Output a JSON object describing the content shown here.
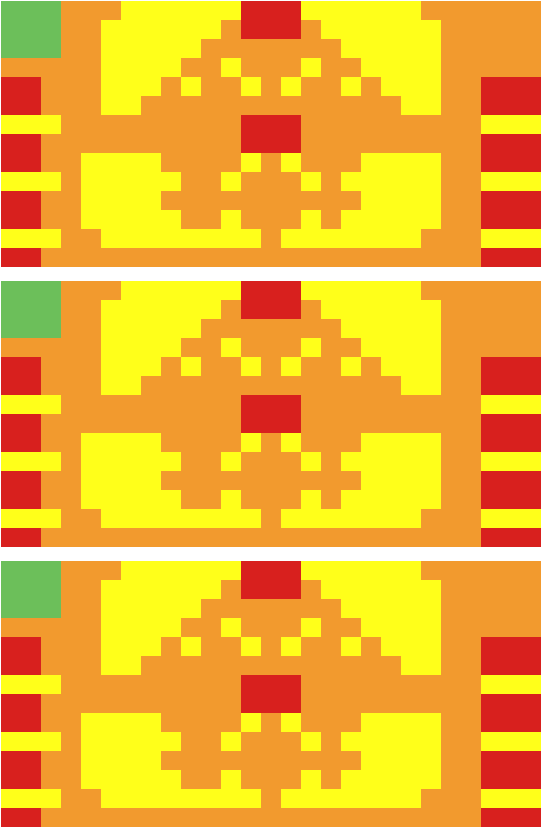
{
  "chart_data": [
    {
      "type": "heatmap",
      "tick_labels": false,
      "cells": [
        [
          1,
          1,
          1,
          3,
          3,
          3,
          2,
          2,
          2,
          2,
          2,
          2,
          4,
          4,
          4,
          2,
          2,
          2,
          2,
          2,
          2,
          3,
          3,
          3,
          3,
          3,
          3
        ],
        [
          1,
          1,
          1,
          3,
          3,
          2,
          2,
          2,
          2,
          2,
          2,
          3,
          4,
          4,
          4,
          3,
          2,
          2,
          2,
          2,
          2,
          2,
          3,
          3,
          3,
          3,
          3
        ],
        [
          1,
          1,
          1,
          3,
          3,
          2,
          2,
          2,
          2,
          2,
          3,
          3,
          3,
          3,
          3,
          3,
          3,
          2,
          2,
          2,
          2,
          2,
          3,
          3,
          3,
          3,
          3
        ],
        [
          3,
          3,
          3,
          3,
          3,
          2,
          2,
          2,
          2,
          3,
          3,
          2,
          3,
          3,
          3,
          2,
          3,
          3,
          2,
          2,
          2,
          2,
          3,
          3,
          3,
          3,
          3
        ],
        [
          4,
          4,
          3,
          3,
          3,
          2,
          2,
          2,
          3,
          2,
          3,
          3,
          2,
          3,
          2,
          3,
          3,
          2,
          3,
          2,
          2,
          2,
          3,
          3,
          4,
          4,
          4
        ],
        [
          4,
          4,
          3,
          3,
          3,
          2,
          2,
          3,
          3,
          3,
          3,
          3,
          3,
          3,
          3,
          3,
          3,
          3,
          3,
          3,
          2,
          2,
          3,
          3,
          4,
          4,
          4
        ],
        [
          2,
          2,
          2,
          3,
          3,
          3,
          3,
          3,
          3,
          3,
          3,
          3,
          4,
          4,
          4,
          3,
          3,
          3,
          3,
          3,
          3,
          3,
          3,
          3,
          2,
          2,
          2
        ],
        [
          4,
          4,
          3,
          3,
          3,
          3,
          3,
          3,
          3,
          3,
          3,
          3,
          4,
          4,
          4,
          3,
          3,
          3,
          3,
          3,
          3,
          3,
          3,
          3,
          4,
          4,
          4
        ],
        [
          4,
          4,
          3,
          3,
          2,
          2,
          2,
          2,
          3,
          3,
          3,
          3,
          2,
          3,
          2,
          3,
          3,
          3,
          2,
          2,
          2,
          2,
          3,
          3,
          4,
          4,
          4
        ],
        [
          2,
          2,
          2,
          3,
          2,
          2,
          2,
          2,
          2,
          3,
          3,
          2,
          3,
          3,
          3,
          2,
          3,
          2,
          2,
          2,
          2,
          2,
          3,
          3,
          2,
          2,
          2
        ],
        [
          4,
          4,
          3,
          3,
          2,
          2,
          2,
          2,
          3,
          3,
          3,
          3,
          3,
          3,
          3,
          3,
          3,
          3,
          2,
          2,
          2,
          2,
          3,
          3,
          4,
          4,
          4
        ],
        [
          4,
          4,
          3,
          3,
          2,
          2,
          2,
          2,
          2,
          3,
          3,
          2,
          3,
          3,
          3,
          2,
          3,
          2,
          2,
          2,
          2,
          2,
          3,
          3,
          4,
          4,
          4
        ],
        [
          2,
          2,
          2,
          3,
          3,
          2,
          2,
          2,
          2,
          2,
          2,
          2,
          2,
          3,
          2,
          2,
          2,
          2,
          2,
          2,
          2,
          3,
          3,
          3,
          2,
          2,
          2
        ],
        [
          4,
          4,
          3,
          3,
          3,
          3,
          3,
          3,
          3,
          3,
          3,
          3,
          3,
          3,
          3,
          3,
          3,
          3,
          3,
          3,
          3,
          3,
          3,
          3,
          4,
          4,
          4
        ]
      ]
    },
    {
      "type": "heatmap",
      "tick_labels": false,
      "cells": [
        [
          1,
          1,
          1,
          3,
          3,
          3,
          2,
          2,
          2,
          2,
          2,
          2,
          4,
          4,
          4,
          2,
          2,
          2,
          2,
          2,
          2,
          3,
          3,
          3,
          3,
          3,
          3
        ],
        [
          1,
          1,
          1,
          3,
          3,
          2,
          2,
          2,
          2,
          2,
          2,
          3,
          4,
          4,
          4,
          3,
          2,
          2,
          2,
          2,
          2,
          2,
          3,
          3,
          3,
          3,
          3
        ],
        [
          1,
          1,
          1,
          3,
          3,
          2,
          2,
          2,
          2,
          2,
          3,
          3,
          3,
          3,
          3,
          3,
          3,
          2,
          2,
          2,
          2,
          2,
          3,
          3,
          3,
          3,
          3
        ],
        [
          3,
          3,
          3,
          3,
          3,
          2,
          2,
          2,
          2,
          3,
          3,
          2,
          3,
          3,
          3,
          2,
          3,
          3,
          2,
          2,
          2,
          2,
          3,
          3,
          3,
          3,
          3
        ],
        [
          4,
          4,
          3,
          3,
          3,
          2,
          2,
          2,
          3,
          2,
          3,
          3,
          2,
          3,
          2,
          3,
          3,
          2,
          3,
          2,
          2,
          2,
          3,
          3,
          4,
          4,
          4
        ],
        [
          4,
          4,
          3,
          3,
          3,
          2,
          2,
          3,
          3,
          3,
          3,
          3,
          3,
          3,
          3,
          3,
          3,
          3,
          3,
          3,
          2,
          2,
          3,
          3,
          4,
          4,
          4
        ],
        [
          2,
          2,
          2,
          3,
          3,
          3,
          3,
          3,
          3,
          3,
          3,
          3,
          4,
          4,
          4,
          3,
          3,
          3,
          3,
          3,
          3,
          3,
          3,
          3,
          2,
          2,
          2
        ],
        [
          4,
          4,
          3,
          3,
          3,
          3,
          3,
          3,
          3,
          3,
          3,
          3,
          4,
          4,
          4,
          3,
          3,
          3,
          3,
          3,
          3,
          3,
          3,
          3,
          4,
          4,
          4
        ],
        [
          4,
          4,
          3,
          3,
          2,
          2,
          2,
          2,
          3,
          3,
          3,
          3,
          2,
          3,
          2,
          3,
          3,
          3,
          2,
          2,
          2,
          2,
          3,
          3,
          4,
          4,
          4
        ],
        [
          2,
          2,
          2,
          3,
          2,
          2,
          2,
          2,
          2,
          3,
          3,
          2,
          3,
          3,
          3,
          2,
          3,
          2,
          2,
          2,
          2,
          2,
          3,
          3,
          2,
          2,
          2
        ],
        [
          4,
          4,
          3,
          3,
          2,
          2,
          2,
          2,
          3,
          3,
          3,
          3,
          3,
          3,
          3,
          3,
          3,
          3,
          2,
          2,
          2,
          2,
          3,
          3,
          4,
          4,
          4
        ],
        [
          4,
          4,
          3,
          3,
          2,
          2,
          2,
          2,
          2,
          3,
          3,
          2,
          3,
          3,
          3,
          2,
          3,
          2,
          2,
          2,
          2,
          2,
          3,
          3,
          4,
          4,
          4
        ],
        [
          2,
          2,
          2,
          3,
          3,
          2,
          2,
          2,
          2,
          2,
          2,
          2,
          2,
          3,
          2,
          2,
          2,
          2,
          2,
          2,
          2,
          3,
          3,
          3,
          2,
          2,
          2
        ],
        [
          4,
          4,
          3,
          3,
          3,
          3,
          3,
          3,
          3,
          3,
          3,
          3,
          3,
          3,
          3,
          3,
          3,
          3,
          3,
          3,
          3,
          3,
          3,
          3,
          4,
          4,
          4
        ]
      ]
    },
    {
      "type": "heatmap",
      "tick_labels": false,
      "cells": [
        [
          1,
          1,
          1,
          3,
          3,
          3,
          2,
          2,
          2,
          2,
          2,
          2,
          4,
          4,
          4,
          2,
          2,
          2,
          2,
          2,
          2,
          3,
          3,
          3,
          3,
          3,
          3
        ],
        [
          1,
          1,
          1,
          3,
          3,
          2,
          2,
          2,
          2,
          2,
          2,
          3,
          4,
          4,
          4,
          3,
          2,
          2,
          2,
          2,
          2,
          2,
          3,
          3,
          3,
          3,
          3
        ],
        [
          1,
          1,
          1,
          3,
          3,
          2,
          2,
          2,
          2,
          2,
          3,
          3,
          3,
          3,
          3,
          3,
          3,
          2,
          2,
          2,
          2,
          2,
          3,
          3,
          3,
          3,
          3
        ],
        [
          3,
          3,
          3,
          3,
          3,
          2,
          2,
          2,
          2,
          3,
          3,
          2,
          3,
          3,
          3,
          2,
          3,
          3,
          2,
          2,
          2,
          2,
          3,
          3,
          3,
          3,
          3
        ],
        [
          4,
          4,
          3,
          3,
          3,
          2,
          2,
          2,
          3,
          2,
          3,
          3,
          2,
          3,
          2,
          3,
          3,
          2,
          3,
          2,
          2,
          2,
          3,
          3,
          4,
          4,
          4
        ],
        [
          4,
          4,
          3,
          3,
          3,
          2,
          2,
          3,
          3,
          3,
          3,
          3,
          3,
          3,
          3,
          3,
          3,
          3,
          3,
          3,
          2,
          2,
          3,
          3,
          4,
          4,
          4
        ],
        [
          2,
          2,
          2,
          3,
          3,
          3,
          3,
          3,
          3,
          3,
          3,
          3,
          4,
          4,
          4,
          3,
          3,
          3,
          3,
          3,
          3,
          3,
          3,
          3,
          2,
          2,
          2
        ],
        [
          4,
          4,
          3,
          3,
          3,
          3,
          3,
          3,
          3,
          3,
          3,
          3,
          4,
          4,
          4,
          3,
          3,
          3,
          3,
          3,
          3,
          3,
          3,
          3,
          4,
          4,
          4
        ],
        [
          4,
          4,
          3,
          3,
          2,
          2,
          2,
          2,
          3,
          3,
          3,
          3,
          2,
          3,
          2,
          3,
          3,
          3,
          2,
          2,
          2,
          2,
          3,
          3,
          4,
          4,
          4
        ],
        [
          2,
          2,
          2,
          3,
          2,
          2,
          2,
          2,
          2,
          3,
          3,
          2,
          3,
          3,
          3,
          2,
          3,
          2,
          2,
          2,
          2,
          2,
          3,
          3,
          2,
          2,
          2
        ],
        [
          4,
          4,
          3,
          3,
          2,
          2,
          2,
          2,
          3,
          3,
          3,
          3,
          3,
          3,
          3,
          3,
          3,
          3,
          2,
          2,
          2,
          2,
          3,
          3,
          4,
          4,
          4
        ],
        [
          4,
          4,
          3,
          3,
          2,
          2,
          2,
          2,
          2,
          3,
          3,
          2,
          3,
          3,
          3,
          2,
          3,
          2,
          2,
          2,
          2,
          2,
          3,
          3,
          4,
          4,
          4
        ],
        [
          2,
          2,
          2,
          3,
          3,
          2,
          2,
          2,
          2,
          2,
          2,
          2,
          2,
          3,
          2,
          2,
          2,
          2,
          2,
          2,
          2,
          3,
          3,
          3,
          2,
          2,
          2
        ],
        [
          4,
          4,
          3,
          3,
          3,
          3,
          3,
          3,
          3,
          3,
          3,
          3,
          3,
          3,
          3,
          3,
          3,
          3,
          3,
          3,
          3,
          3,
          3,
          3,
          4,
          4,
          4
        ]
      ]
    }
  ]
}
